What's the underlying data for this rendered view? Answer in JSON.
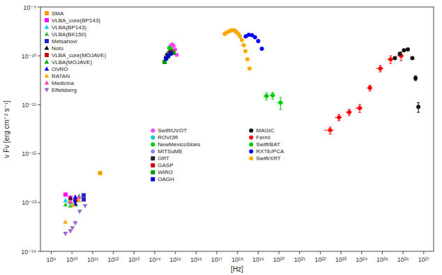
{
  "chart_data": {
    "type": "scatter",
    "log": true,
    "grid": false,
    "legend": "upper left",
    "xlabel": "[Hz]",
    "ylabel": "ν Fν [erg cm⁻² s⁻¹]",
    "xlim": [
      300000000.0,
      3e+27
    ],
    "ylim": [
      1e-14,
      1e-09
    ],
    "xticks": [
      {
        "value": 1000000000.0,
        "label": "10⁹"
      },
      {
        "value": 10000000000.0,
        "label": "10¹⁰"
      },
      {
        "value": 100000000000.0,
        "label": "10¹¹"
      },
      {
        "value": 1000000000000.0,
        "label": "10¹²"
      },
      {
        "value": 10000000000000.0,
        "label": "10¹³"
      },
      {
        "value": 100000000000000.0,
        "label": "10¹⁴"
      },
      {
        "value": 1000000000000000.0,
        "label": "10¹⁵"
      },
      {
        "value": 1e+16,
        "label": "10¹⁶"
      },
      {
        "value": 1e+17,
        "label": "10¹⁷"
      },
      {
        "value": 1e+18,
        "label": "10¹⁸"
      },
      {
        "value": 1e+19,
        "label": "10¹⁹"
      },
      {
        "value": 1e+20,
        "label": "10²⁰"
      },
      {
        "value": 1e+21,
        "label": "10²¹"
      },
      {
        "value": 1e+22,
        "label": "10²²"
      },
      {
        "value": 1e+23,
        "label": "10²³"
      },
      {
        "value": 1e+24,
        "label": "10²⁴"
      },
      {
        "value": 1e+25,
        "label": "10²⁵"
      },
      {
        "value": 1e+26,
        "label": "10²⁶"
      },
      {
        "value": 1e+27,
        "label": "10²⁷"
      }
    ],
    "yticks": [
      {
        "value": 1e-14,
        "label": "10⁻¹⁴"
      },
      {
        "value": 1e-13,
        "label": "10⁻¹³"
      },
      {
        "value": 1e-12,
        "label": "10⁻¹²"
      },
      {
        "value": 1e-11,
        "label": "10⁻¹¹"
      },
      {
        "value": 1e-10,
        "label": "10⁻¹⁰"
      },
      {
        "value": 1e-09,
        "label": "10⁻⁹"
      }
    ],
    "series": [
      {
        "name": "SMA",
        "color": "#ff9900",
        "marker": "square",
        "x": [
          230000000000.0
        ],
        "values": [
          4e-13
        ]
      },
      {
        "name": "VLBA_core(BP143)",
        "color": "#ff00ff",
        "marker": "square",
        "x": [
          4900000000.0,
          8400000000.0
        ],
        "values": [
          1.45e-13,
          1.25e-13
        ]
      },
      {
        "name": "VLBA(BP143)",
        "color": "#00ccff",
        "marker": "triangle-up",
        "x": [
          4900000000.0,
          8400000000.0
        ],
        "values": [
          1.1e-13,
          1e-13
        ]
      },
      {
        "name": "VLBA(BK150)",
        "color": "#44bb44",
        "marker": "triangle-up",
        "x": [
          4900000000.0,
          8400000000.0,
          22000000000.0
        ],
        "values": [
          9e-14,
          8.5e-14,
          1.35e-13
        ]
      },
      {
        "name": "Metsahovi",
        "color": "#2222cc",
        "marker": "square",
        "x": [
          37000000000.0,
          37000000000.0
        ],
        "values": [
          1.4e-13,
          1.15e-13
        ]
      },
      {
        "name": "Noto",
        "color": "#000000",
        "marker": "triangle-up",
        "x": [
          8400000000.0,
          14500000000.0
        ],
        "values": [
          1.2e-13,
          1.15e-13
        ]
      },
      {
        "name": "VLBA_core(MOJAVE)",
        "color": "#cc0000",
        "marker": "square",
        "x": [
          14500000000.0
        ],
        "values": [
          1.1e-13
        ]
      },
      {
        "name": "VLBA(MOJAVE)",
        "color": "#00aa00",
        "marker": "triangle-up",
        "x": [
          14500000000.0
        ],
        "values": [
          9e-14
        ]
      },
      {
        "name": "OVRO",
        "color": "#0000ff",
        "marker": "triangle-up",
        "x": [
          14500000000.0,
          14500000000.0,
          14500000000.0
        ],
        "values": [
          1.3e-13,
          1.1e-13,
          9.5e-14
        ]
      },
      {
        "name": "RATAN",
        "color": "#ffaa00",
        "marker": "triangle-up",
        "x": [
          4800000000.0,
          7700000000.0,
          11000000000.0,
          22000000000.0
        ],
        "values": [
          4e-14,
          1.05e-13,
          9e-14,
          1.1e-13
        ]
      },
      {
        "name": "Medicina",
        "color": "#ff44aa",
        "marker": "triangle-up",
        "x": [
          8400000000.0,
          22000000000.0
        ],
        "values": [
          1.05e-13,
          1.28e-13
        ]
      },
      {
        "name": "Effelsberg",
        "color": "#9966cc",
        "marker": "triangle-down",
        "x": [
          4850000000.0,
          8350000000.0,
          10500000000.0,
          14500000000.0,
          23500000000.0,
          43000000000.0
        ],
        "values": [
          2.3e-14,
          2.6e-14,
          3e-14,
          3.8e-14,
          6.5e-14,
          8.5e-14
        ]
      },
      {
        "name": "Swift/UVOT",
        "color": "#ff44ff",
        "marker": "circle",
        "x": [
          600000000000000.0,
          700000000000000.0,
          800000000000000.0,
          950000000000000.0,
          1150000000000000.0
        ],
        "values": [
          1.6e-10,
          1.7e-10,
          1.6e-10,
          1.35e-10,
          1.05e-10
        ]
      },
      {
        "name": "ROVOR",
        "color": "#00cccc",
        "marker": "circle",
        "x": [
          550000000000000.0,
          650000000000000.0
        ],
        "values": [
          1.4e-10,
          1.3e-10
        ]
      },
      {
        "name": "NewMexicoSkies",
        "color": "#00cc00",
        "marker": "circle",
        "x": [
          500000000000000.0,
          600000000000000.0,
          700000000000000.0
        ],
        "values": [
          1.45e-10,
          1.35e-10,
          1.25e-10
        ]
      },
      {
        "name": "MITSuME",
        "color": "#8888ff",
        "marker": "circle",
        "x": [
          350000000000000.0,
          450000000000000.0,
          550000000000000.0
        ],
        "values": [
          9.5e-11,
          1.05e-10,
          1.15e-10
        ]
      },
      {
        "name": "GRT",
        "color": "#222222",
        "marker": "square",
        "x": [
          420000000000000.0,
          520000000000000.0,
          620000000000000.0
        ],
        "values": [
          1.05e-10,
          1.15e-10,
          1.2e-10
        ]
      },
      {
        "name": "GASP",
        "color": "#cc0000",
        "marker": "square",
        "x": [
          400000000000000.0,
          500000000000000.0,
          600000000000000.0,
          700000000000000.0
        ],
        "values": [
          1e-10,
          1.1e-10,
          1.15e-10,
          1.2e-10
        ]
      },
      {
        "name": "WIRO",
        "color": "#009900",
        "marker": "square",
        "x": [
          300000000000000.0,
          400000000000000.0,
          500000000000000.0,
          800000000000000.0
        ],
        "values": [
          7.5e-11,
          9.5e-11,
          1.1e-10,
          1.15e-10
        ]
      },
      {
        "name": "OAGH",
        "color": "#0000cc",
        "marker": "square",
        "x": [
          350000000000000.0,
          450000000000000.0,
          600000000000000.0
        ],
        "values": [
          8.8e-11,
          1e-10,
          1.12e-10
        ]
      },
      {
        "name": "Swift/XRT",
        "color": "#ffaa00",
        "marker": "circle",
        "x": [
          2.4e+17,
          3e+17,
          4e+17,
          5e+17,
          6e+17,
          7e+17,
          8e+17,
          9e+17,
          1.1e+18,
          1.3e+18,
          1.6e+18,
          2e+18,
          2.4e+18,
          3e+18,
          3.8e+18
        ],
        "values": [
          2.8e-10,
          3e-10,
          3.2e-10,
          3.3e-10,
          3.35e-10,
          3.3e-10,
          3.2e-10,
          3.05e-10,
          2.8e-10,
          2.5e-10,
          2.1e-10,
          1.65e-10,
          1.25e-10,
          8.5e-11,
          5.5e-11
        ]
      },
      {
        "name": "RXTE/PCA",
        "color": "#0000ff",
        "marker": "circle",
        "x": [
          2.5e+18,
          3.5e+18,
          5e+18,
          7e+18,
          1e+19,
          1.5e+19
        ],
        "values": [
          2.5e-10,
          2.7e-10,
          2.65e-10,
          2.4e-10,
          2e-10,
          1.4e-10
        ]
      },
      {
        "name": "Swift/BAT",
        "color": "#00cc00",
        "marker": "circle",
        "x": [
          2.5e+19,
          5e+19,
          1.2e+20
        ],
        "values": [
          1.5e-11,
          1.55e-11,
          1.1e-11
        ],
        "x_err_lo": [
          8e+18,
          1.5e+19,
          4e+19
        ],
        "x_err_hi": [
          8e+18,
          1.5e+19,
          4e+19
        ],
        "y_err": [
          2.5e-12,
          2.5e-12,
          3e-12
        ]
      },
      {
        "name": "Fermi",
        "color": "#ff0000",
        "marker": "circle",
        "x": [
          3e+22,
          8e+22,
          2.5e+23,
          8e+23,
          2.5e+24,
          8e+24,
          2.5e+25,
          8e+25
        ],
        "values": [
          3e-12,
          5.5e-12,
          7e-12,
          8.5e-12,
          2.2e-11,
          5.5e-11,
          8.5e-11,
          1e-10
        ],
        "x_err_lo": [
          1.5e+22,
          3e+22,
          8e+22,
          3e+23,
          8e+23,
          3e+24,
          8e+24,
          3e+25
        ],
        "x_err_hi": [
          1.5e+22,
          3e+22,
          8e+22,
          3e+23,
          8e+23,
          3e+24,
          8e+24,
          3e+25
        ],
        "y_err": [
          5e-13,
          8e-13,
          1e-12,
          1.5e-12,
          3e-12,
          8e-12,
          1.5e-11,
          2e-11
        ]
      },
      {
        "name": "MAGIC",
        "color": "#111111",
        "marker": "circle",
        "x": [
          4e+25,
          7e+25,
          1.1e+26,
          1.7e+26,
          2.8e+26,
          4e+26,
          5.5e+26
        ],
        "values": [
          9e-11,
          1.1e-10,
          1.3e-10,
          1.35e-10,
          9e-11,
          3.5e-11,
          9e-12
        ],
        "y_err": [
          5e-12,
          5e-12,
          6e-12,
          6e-12,
          5e-12,
          4e-12,
          2e-12
        ]
      }
    ]
  }
}
